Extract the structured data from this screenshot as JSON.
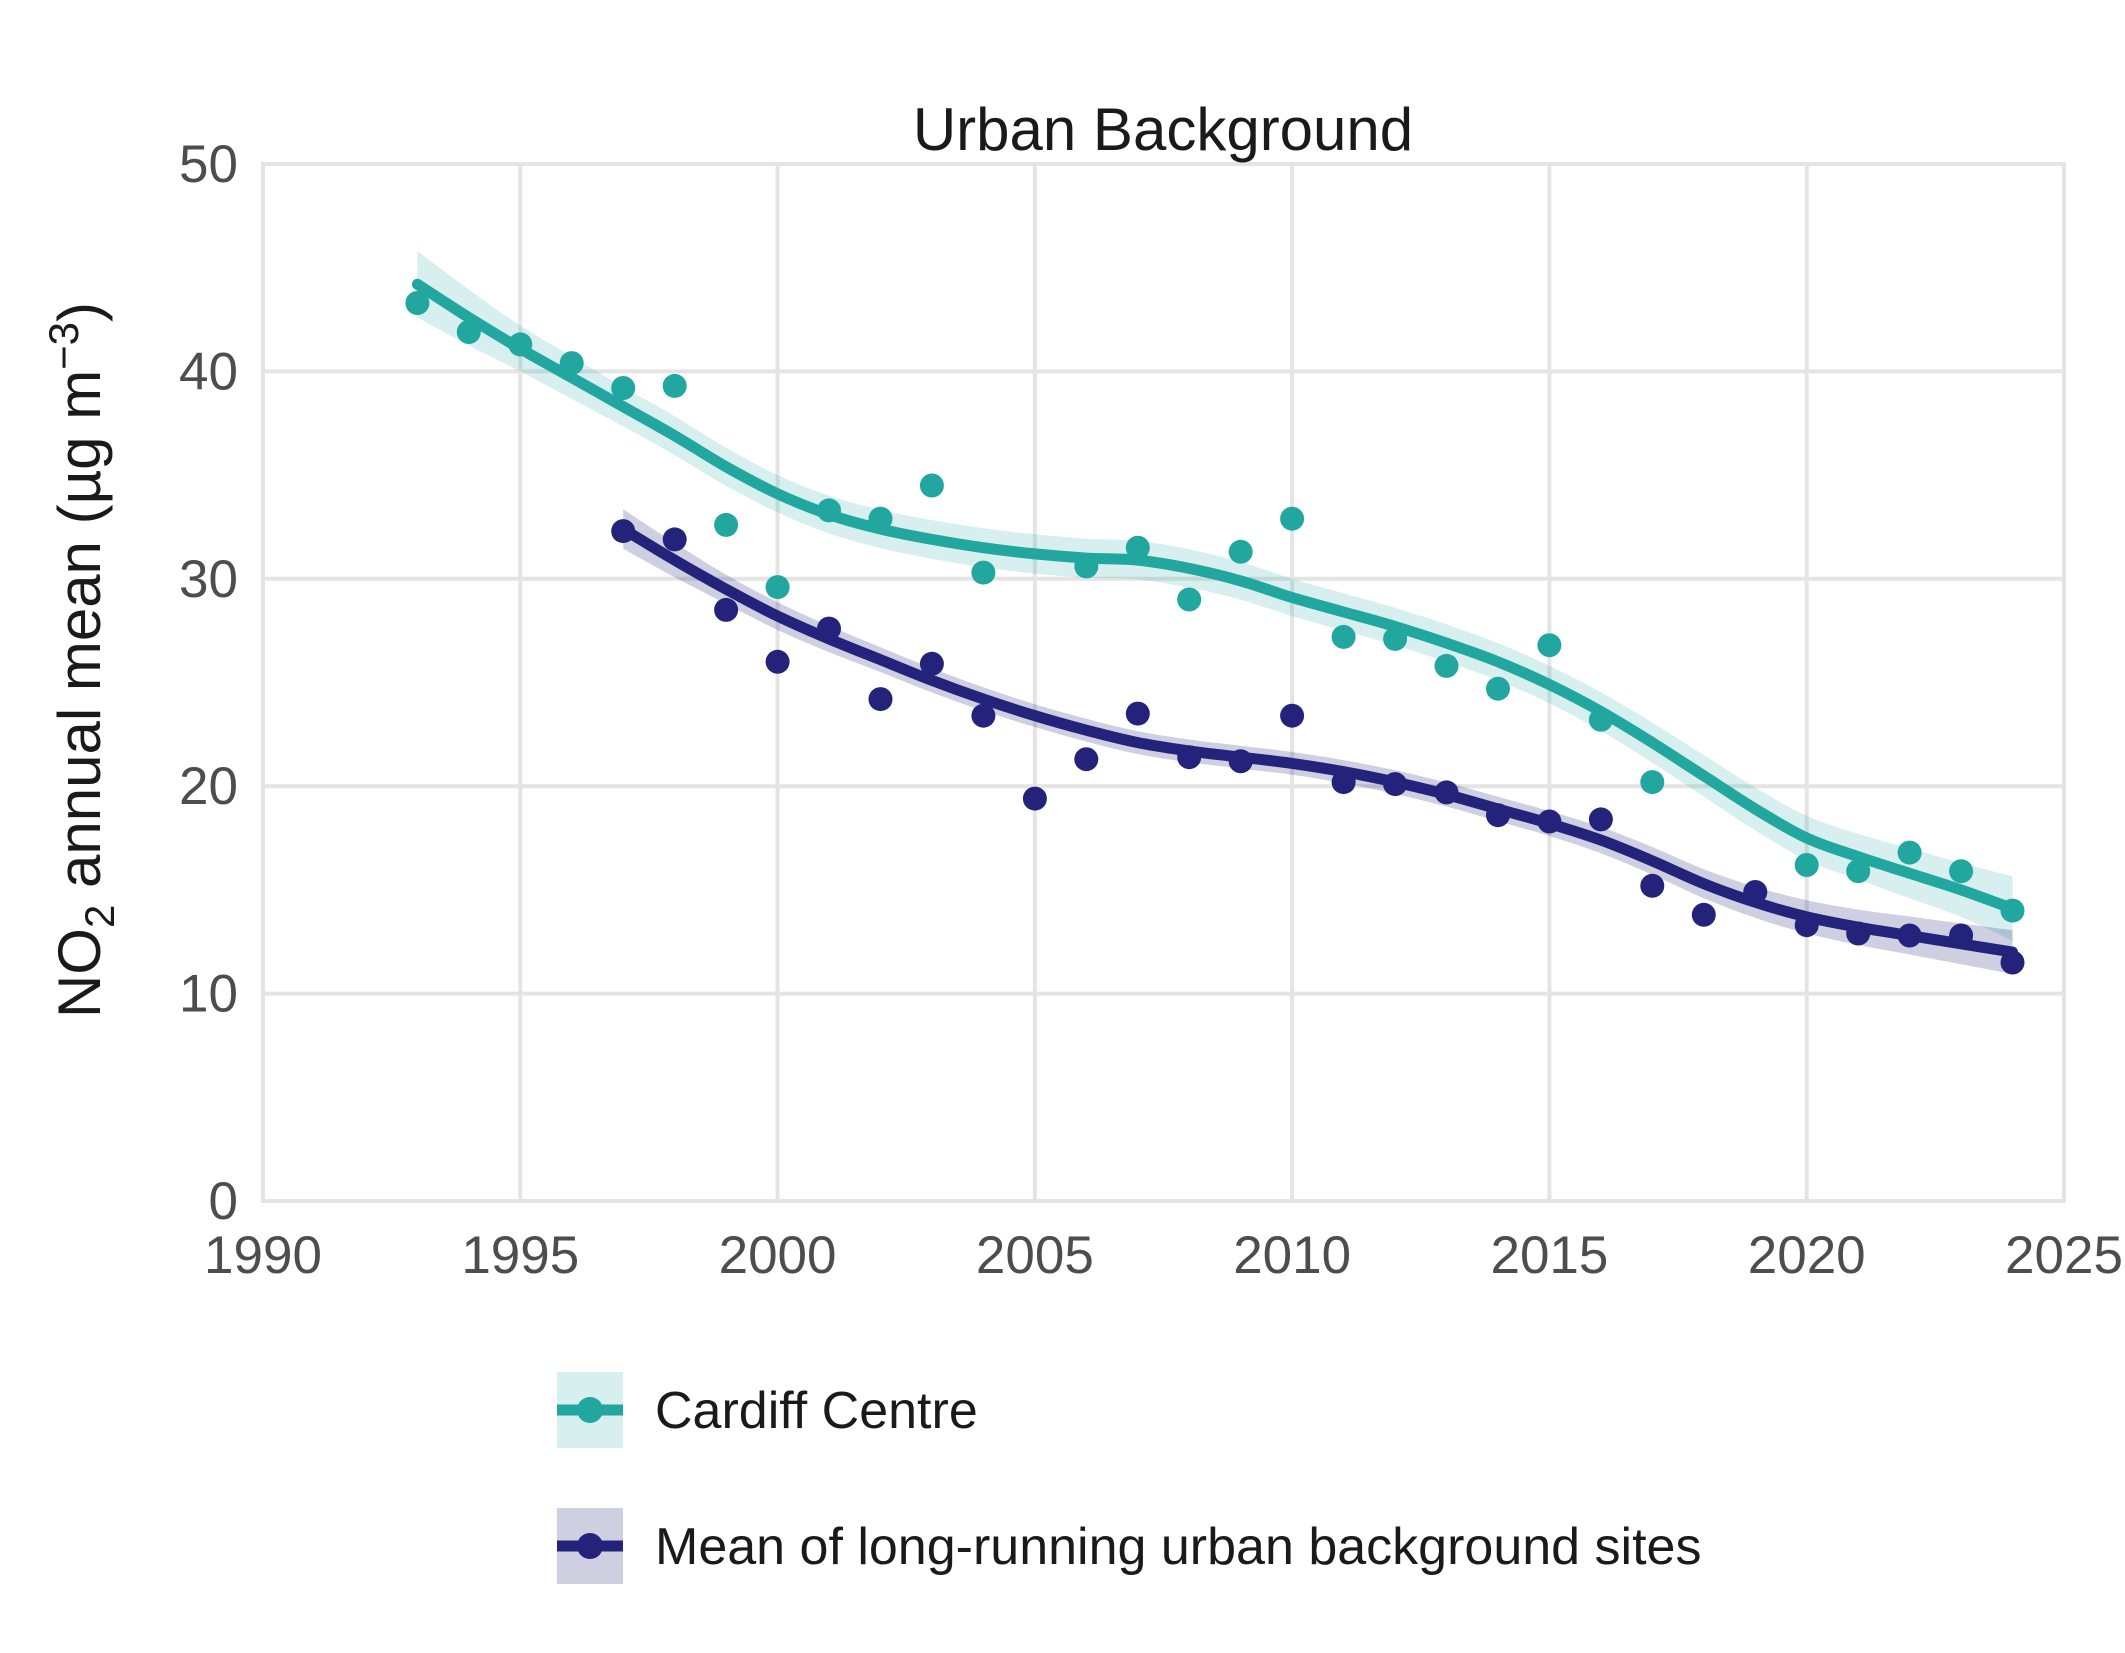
{
  "title": "Urban Background",
  "y_axis": {
    "label_parts": [
      {
        "t": "NO"
      },
      {
        "t": "2",
        "sub": true
      },
      {
        "t": " annual mean (µg m"
      },
      {
        "t": "−3",
        "sup": true
      },
      {
        "t": ")"
      }
    ],
    "ticks": [
      0,
      10,
      20,
      30,
      40,
      50
    ],
    "range": [
      0,
      50
    ]
  },
  "x_axis": {
    "ticks": [
      1990,
      1995,
      2000,
      2005,
      2010,
      2015,
      2020,
      2025
    ],
    "range": [
      1990,
      2025
    ]
  },
  "colors": {
    "teal": "#21A7A0",
    "teal_band": "rgba(33,167,160,0.18)",
    "navy": "#24237C",
    "navy_band": "rgba(36,35,124,0.22)",
    "grid": "#E4E4E4",
    "tick_text": "#4D4D4D",
    "text": "#1A1A1A",
    "background": "#FFFFFF"
  },
  "legend": {
    "items": [
      {
        "label": "Cardiff Centre",
        "series": "cardiff"
      },
      {
        "label": "Mean of long-running urban background sites",
        "series": "mean_sites"
      }
    ]
  },
  "chart_data": {
    "type": "scatter",
    "subtype": "points-with-loess-smooth-and-confidence-band",
    "title": "Urban Background",
    "xlabel": "",
    "ylabel": "NO2 annual mean (ug m-3)",
    "xlim": [
      1990,
      2025
    ],
    "ylim": [
      0,
      50
    ],
    "grid": true,
    "legend_position": "bottom-left",
    "series": [
      {
        "name": "Cardiff Centre",
        "id": "cardiff",
        "color_key": "teal",
        "band_key": "teal_band",
        "points": [
          [
            1993,
            43.3
          ],
          [
            1994,
            41.9
          ],
          [
            1995,
            41.3
          ],
          [
            1996,
            40.4
          ],
          [
            1997,
            39.2
          ],
          [
            1998,
            39.3
          ],
          [
            1999,
            32.6
          ],
          [
            2000,
            29.6
          ],
          [
            2001,
            33.3
          ],
          [
            2002,
            32.9
          ],
          [
            2003,
            34.5
          ],
          [
            2004,
            30.3
          ],
          [
            2006,
            30.6
          ],
          [
            2007,
            31.5
          ],
          [
            2008,
            29.0
          ],
          [
            2009,
            31.3
          ],
          [
            2010,
            32.9
          ],
          [
            2011,
            27.2
          ],
          [
            2012,
            27.1
          ],
          [
            2013,
            25.8
          ],
          [
            2014,
            24.7
          ],
          [
            2015,
            26.8
          ],
          [
            2016,
            23.2
          ],
          [
            2017,
            20.2
          ],
          [
            2020,
            16.2
          ],
          [
            2021,
            15.9
          ],
          [
            2022,
            16.8
          ],
          [
            2023,
            15.9
          ],
          [
            2024,
            14.0
          ]
        ],
        "smooth": [
          [
            1993,
            44.2
          ],
          [
            1994,
            42.6
          ],
          [
            1995,
            41.1
          ],
          [
            1996,
            39.7
          ],
          [
            1997,
            38.3
          ],
          [
            1998,
            36.9
          ],
          [
            1999,
            35.4
          ],
          [
            2000,
            34.1
          ],
          [
            2001,
            33.1
          ],
          [
            2002,
            32.4
          ],
          [
            2003,
            31.9
          ],
          [
            2004,
            31.5
          ],
          [
            2005,
            31.2
          ],
          [
            2006,
            31.0
          ],
          [
            2007,
            30.9
          ],
          [
            2008,
            30.5
          ],
          [
            2009,
            29.9
          ],
          [
            2010,
            29.1
          ],
          [
            2011,
            28.4
          ],
          [
            2012,
            27.7
          ],
          [
            2013,
            26.9
          ],
          [
            2014,
            26.0
          ],
          [
            2015,
            24.9
          ],
          [
            2016,
            23.6
          ],
          [
            2017,
            22.1
          ],
          [
            2018,
            20.5
          ],
          [
            2019,
            18.9
          ],
          [
            2020,
            17.5
          ],
          [
            2021,
            16.6
          ],
          [
            2022,
            15.8
          ],
          [
            2023,
            15.0
          ],
          [
            2024,
            14.1
          ]
        ],
        "band_half_width": [
          [
            1993,
            1.6
          ],
          [
            1995,
            1.1
          ],
          [
            1997,
            0.95
          ],
          [
            2000,
            0.9
          ],
          [
            2005,
            0.95
          ],
          [
            2010,
            0.9
          ],
          [
            2015,
            0.9
          ],
          [
            2018,
            1.0
          ],
          [
            2021,
            1.1
          ],
          [
            2023,
            1.3
          ],
          [
            2024,
            1.55
          ]
        ]
      },
      {
        "name": "Mean of long-running urban background sites",
        "id": "mean_sites",
        "color_key": "navy",
        "band_key": "navy_band",
        "points": [
          [
            1997,
            32.3
          ],
          [
            1998,
            31.9
          ],
          [
            1999,
            28.5
          ],
          [
            2000,
            26.0
          ],
          [
            2001,
            27.6
          ],
          [
            2002,
            24.2
          ],
          [
            2003,
            25.9
          ],
          [
            2004,
            23.4
          ],
          [
            2005,
            19.4
          ],
          [
            2006,
            21.3
          ],
          [
            2007,
            23.5
          ],
          [
            2008,
            21.4
          ],
          [
            2009,
            21.2
          ],
          [
            2010,
            23.4
          ],
          [
            2011,
            20.2
          ],
          [
            2012,
            20.1
          ],
          [
            2013,
            19.7
          ],
          [
            2014,
            18.6
          ],
          [
            2015,
            18.3
          ],
          [
            2016,
            18.4
          ],
          [
            2017,
            15.2
          ],
          [
            2018,
            13.8
          ],
          [
            2019,
            14.9
          ],
          [
            2020,
            13.3
          ],
          [
            2021,
            12.9
          ],
          [
            2022,
            12.8
          ],
          [
            2023,
            12.8
          ],
          [
            2024,
            11.5
          ]
        ],
        "smooth": [
          [
            1997,
            32.4
          ],
          [
            1998,
            30.9
          ],
          [
            1999,
            29.5
          ],
          [
            2000,
            28.2
          ],
          [
            2001,
            27.1
          ],
          [
            2002,
            26.1
          ],
          [
            2003,
            25.1
          ],
          [
            2004,
            24.2
          ],
          [
            2005,
            23.4
          ],
          [
            2006,
            22.7
          ],
          [
            2007,
            22.1
          ],
          [
            2008,
            21.7
          ],
          [
            2009,
            21.4
          ],
          [
            2010,
            21.1
          ],
          [
            2011,
            20.7
          ],
          [
            2012,
            20.2
          ],
          [
            2013,
            19.6
          ],
          [
            2014,
            18.9
          ],
          [
            2015,
            18.2
          ],
          [
            2016,
            17.4
          ],
          [
            2017,
            16.4
          ],
          [
            2018,
            15.3
          ],
          [
            2019,
            14.4
          ],
          [
            2020,
            13.7
          ],
          [
            2021,
            13.2
          ],
          [
            2022,
            12.8
          ],
          [
            2023,
            12.4
          ],
          [
            2024,
            12.0
          ]
        ],
        "band_half_width": [
          [
            1997,
            0.95
          ],
          [
            1999,
            0.7
          ],
          [
            2002,
            0.6
          ],
          [
            2005,
            0.55
          ],
          [
            2010,
            0.55
          ],
          [
            2015,
            0.6
          ],
          [
            2018,
            0.7
          ],
          [
            2021,
            0.85
          ],
          [
            2024,
            1.05
          ]
        ]
      }
    ]
  }
}
